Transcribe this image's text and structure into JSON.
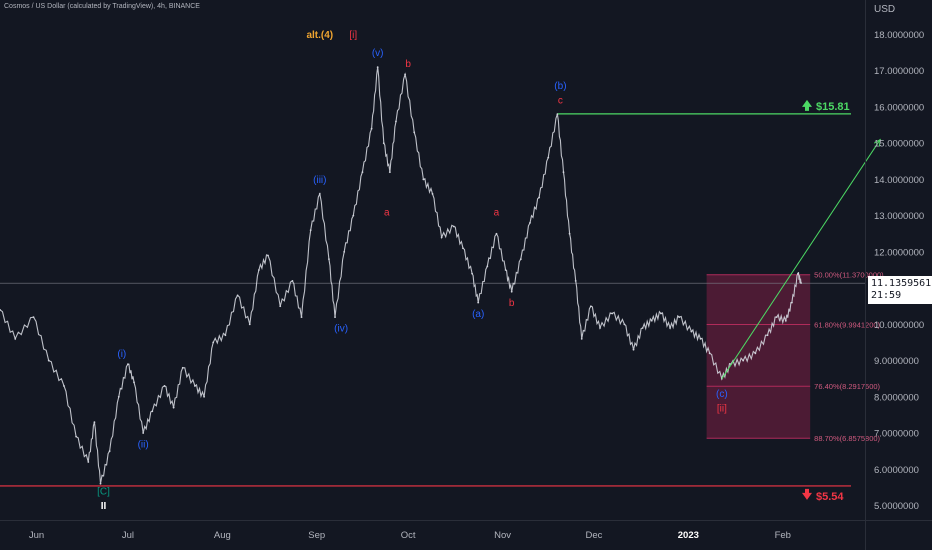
{
  "header": {
    "symbol_line": "Cosmos / US Dollar (calculated by TradingView), 4h, BINANCE"
  },
  "axis": {
    "currency": "USD"
  },
  "price_tag": {
    "price": "11.1359561",
    "countdown": "21:59"
  },
  "colors": {
    "bg": "#131722",
    "candles": "#d1d4dc",
    "wave_blue": "#2962ff",
    "wave_red": "#f23645",
    "wave_orange": "#f0a530",
    "wave_green": "#089981",
    "target_green": "#4cd964",
    "fib_box": "#7b1f44",
    "fib_line": "#b02b5a"
  },
  "chart_data": {
    "type": "line",
    "title": "",
    "xlabel": "",
    "ylabel": "USD",
    "ylim": [
      5.0,
      18.0
    ],
    "y_ticks": [
      18,
      17,
      16,
      15,
      14,
      13,
      12,
      11,
      10,
      9,
      8,
      7,
      6,
      5
    ],
    "y_tick_labels": [
      "18.0000000",
      "17.0000000",
      "16.0000000",
      "15.0000000",
      "14.0000000",
      "13.0000000",
      "12.0000000",
      "11.0000000",
      "10.0000000",
      "9.0000000",
      "8.0000000",
      "7.0000000",
      "6.0000000",
      "5.0000000"
    ],
    "x_ticks": [
      "2022-06-01",
      "2022-07-01",
      "2022-08-01",
      "2022-09-01",
      "2022-10-01",
      "2022-11-01",
      "2022-12-01",
      "2023-01-01",
      "2023-02-01"
    ],
    "x_tick_labels": [
      "Jun",
      "Jul",
      "Aug",
      "Sep",
      "Oct",
      "Nov",
      "Dec",
      "2023",
      "Feb"
    ],
    "xlim": [
      "2022-05-20",
      "2023-02-28"
    ],
    "series": [
      {
        "points": [
          [
            "2022-05-20",
            10.4
          ],
          [
            "2022-05-25",
            9.6
          ],
          [
            "2022-05-31",
            10.2
          ],
          [
            "2022-06-05",
            9.0
          ],
          [
            "2022-06-10",
            8.3
          ],
          [
            "2022-06-14",
            6.9
          ],
          [
            "2022-06-18",
            6.2
          ],
          [
            "2022-06-20",
            7.3
          ],
          [
            "2022-06-22",
            5.6
          ],
          [
            "2022-06-25",
            6.5
          ],
          [
            "2022-06-28",
            8.0
          ],
          [
            "2022-07-01",
            8.9
          ],
          [
            "2022-07-03",
            8.4
          ],
          [
            "2022-07-06",
            7.0
          ],
          [
            "2022-07-09",
            7.6
          ],
          [
            "2022-07-13",
            8.3
          ],
          [
            "2022-07-16",
            7.7
          ],
          [
            "2022-07-19",
            8.8
          ],
          [
            "2022-07-23",
            8.3
          ],
          [
            "2022-07-26",
            8.0
          ],
          [
            "2022-07-29",
            9.5
          ],
          [
            "2022-08-02",
            9.7
          ],
          [
            "2022-08-06",
            10.8
          ],
          [
            "2022-08-10",
            10.0
          ],
          [
            "2022-08-13",
            11.5
          ],
          [
            "2022-08-16",
            11.9
          ],
          [
            "2022-08-20",
            10.5
          ],
          [
            "2022-08-24",
            11.2
          ],
          [
            "2022-08-27",
            10.2
          ],
          [
            "2022-08-30",
            12.6
          ],
          [
            "2022-09-02",
            13.6
          ],
          [
            "2022-09-05",
            11.8
          ],
          [
            "2022-09-07",
            10.2
          ],
          [
            "2022-09-10",
            12.0
          ],
          [
            "2022-09-13",
            13.0
          ],
          [
            "2022-09-16",
            14.2
          ],
          [
            "2022-09-19",
            15.4
          ],
          [
            "2022-09-21",
            17.1
          ],
          [
            "2022-09-23",
            15.0
          ],
          [
            "2022-09-25",
            14.2
          ],
          [
            "2022-09-27",
            15.6
          ],
          [
            "2022-09-30",
            16.9
          ],
          [
            "2022-10-03",
            15.3
          ],
          [
            "2022-10-06",
            14.0
          ],
          [
            "2022-10-09",
            13.6
          ],
          [
            "2022-10-12",
            12.4
          ],
          [
            "2022-10-16",
            12.7
          ],
          [
            "2022-10-19",
            12.1
          ],
          [
            "2022-10-22",
            11.4
          ],
          [
            "2022-10-24",
            10.6
          ],
          [
            "2022-10-27",
            11.6
          ],
          [
            "2022-10-30",
            12.5
          ],
          [
            "2022-11-02",
            11.5
          ],
          [
            "2022-11-04",
            10.9
          ],
          [
            "2022-11-07",
            11.8
          ],
          [
            "2022-11-10",
            12.8
          ],
          [
            "2022-11-13",
            13.5
          ],
          [
            "2022-11-16",
            14.6
          ],
          [
            "2022-11-19",
            15.8
          ],
          [
            "2022-11-21",
            14.2
          ],
          [
            "2022-11-23",
            12.5
          ],
          [
            "2022-11-25",
            11.2
          ],
          [
            "2022-11-27",
            9.6
          ],
          [
            "2022-11-30",
            10.5
          ],
          [
            "2022-12-03",
            9.9
          ],
          [
            "2022-12-07",
            10.3
          ],
          [
            "2022-12-11",
            10.0
          ],
          [
            "2022-12-14",
            9.3
          ],
          [
            "2022-12-17",
            9.9
          ],
          [
            "2022-12-20",
            10.1
          ],
          [
            "2022-12-23",
            10.3
          ],
          [
            "2022-12-26",
            9.9
          ],
          [
            "2022-12-29",
            10.2
          ],
          [
            "2023-01-02",
            9.8
          ],
          [
            "2023-01-05",
            9.6
          ],
          [
            "2023-01-08",
            9.2
          ],
          [
            "2023-01-12",
            8.5
          ],
          [
            "2023-01-15",
            8.9
          ],
          [
            "2023-01-19",
            9.0
          ],
          [
            "2023-01-23",
            9.2
          ],
          [
            "2023-01-27",
            9.7
          ],
          [
            "2023-01-30",
            10.2
          ],
          [
            "2023-02-02",
            10.1
          ],
          [
            "2023-02-04",
            10.6
          ],
          [
            "2023-02-06",
            11.4
          ],
          [
            "2023-02-07",
            11.14
          ]
        ]
      }
    ],
    "fib_levels": [
      {
        "ratio_label": "50.00%",
        "price": 11.37,
        "text": "50.00%(11.3700000)"
      },
      {
        "ratio_label": "61.80%",
        "price": 9.9941,
        "text": "61.80%(9.9941200)"
      },
      {
        "ratio_label": "76.40%",
        "price": 8.2917,
        "text": "76.40%(8.2917600)"
      },
      {
        "ratio_label": "88.70%",
        "price": 6.8576,
        "text": "88.70%(6.8575800)"
      }
    ],
    "fib_zone": {
      "start": "2023-01-07",
      "end": "2023-02-28",
      "top": 11.37,
      "bottom": 6.8576
    },
    "targets": [
      {
        "label": "$15.81",
        "price": 15.81,
        "start": "2022-11-19",
        "color": "green",
        "arrow": "up"
      },
      {
        "label": "$5.54",
        "price": 5.54,
        "start": "2022-05-20",
        "color": "red",
        "arrow": "down"
      }
    ],
    "projection": {
      "from": [
        "2023-01-12",
        8.5
      ],
      "to": [
        "2023-03-05",
        15.1
      ]
    },
    "price_line": 11.1359561,
    "wave_labels": [
      {
        "text": "alt.(4)",
        "date": "2022-09-02",
        "price": 17.9,
        "color": "orange"
      },
      {
        "text": "[i]",
        "date": "2022-09-13",
        "price": 17.9,
        "color": "red"
      },
      {
        "text": "(v)",
        "date": "2022-09-21",
        "price": 17.4,
        "color": "blue"
      },
      {
        "text": "b",
        "date": "2022-10-01",
        "price": 17.1,
        "color": "red"
      },
      {
        "text": "a",
        "date": "2022-09-24",
        "price": 13.0,
        "color": "red"
      },
      {
        "text": "(iii)",
        "date": "2022-09-02",
        "price": 13.9,
        "color": "blue"
      },
      {
        "text": "(iv)",
        "date": "2022-09-09",
        "price": 9.8,
        "color": "blue"
      },
      {
        "text": "(i)",
        "date": "2022-06-29",
        "price": 9.1,
        "color": "blue"
      },
      {
        "text": "(ii)",
        "date": "2022-07-06",
        "price": 6.6,
        "color": "blue"
      },
      {
        "text": "[C]",
        "date": "2022-06-23",
        "price": 5.3,
        "color": "green"
      },
      {
        "text": "II",
        "date": "2022-06-23",
        "price": 4.9,
        "color": "white"
      },
      {
        "text": "(a)",
        "date": "2022-10-24",
        "price": 10.2,
        "color": "blue"
      },
      {
        "text": "a",
        "date": "2022-10-30",
        "price": 13.0,
        "color": "red"
      },
      {
        "text": "b",
        "date": "2022-11-04",
        "price": 10.5,
        "color": "red"
      },
      {
        "text": "(b)",
        "date": "2022-11-20",
        "price": 16.5,
        "color": "blue"
      },
      {
        "text": "c",
        "date": "2022-11-20",
        "price": 16.1,
        "color": "red"
      },
      {
        "text": "(c)",
        "date": "2023-01-12",
        "price": 8.0,
        "color": "blue"
      },
      {
        "text": "[ii]",
        "date": "2023-01-12",
        "price": 7.6,
        "color": "red"
      }
    ]
  }
}
